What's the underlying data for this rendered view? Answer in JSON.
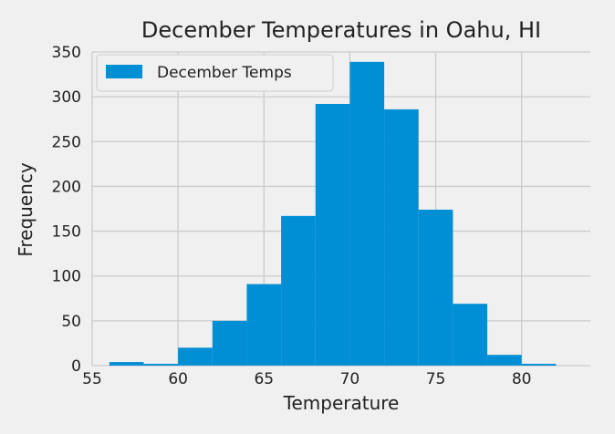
{
  "chart_data": {
    "type": "bar",
    "title": "December Temperatures in Oahu, HI",
    "xlabel": "Temperature",
    "ylabel": "Frequency",
    "xlim": [
      55,
      84
    ],
    "ylim": [
      0,
      350
    ],
    "xticks": [
      55,
      60,
      65,
      70,
      75,
      80
    ],
    "yticks": [
      0,
      50,
      100,
      150,
      200,
      250,
      300,
      350
    ],
    "bin_edges": [
      56,
      58,
      60,
      62,
      64,
      66,
      68,
      70,
      72,
      74,
      76,
      78,
      80,
      82
    ],
    "values": [
      4,
      2,
      20,
      50,
      91,
      167,
      292,
      339,
      286,
      174,
      69,
      12,
      2
    ],
    "series_name": "December Temps",
    "bar_color": "#008fd5",
    "grid": true,
    "legend_position": "top-left"
  }
}
